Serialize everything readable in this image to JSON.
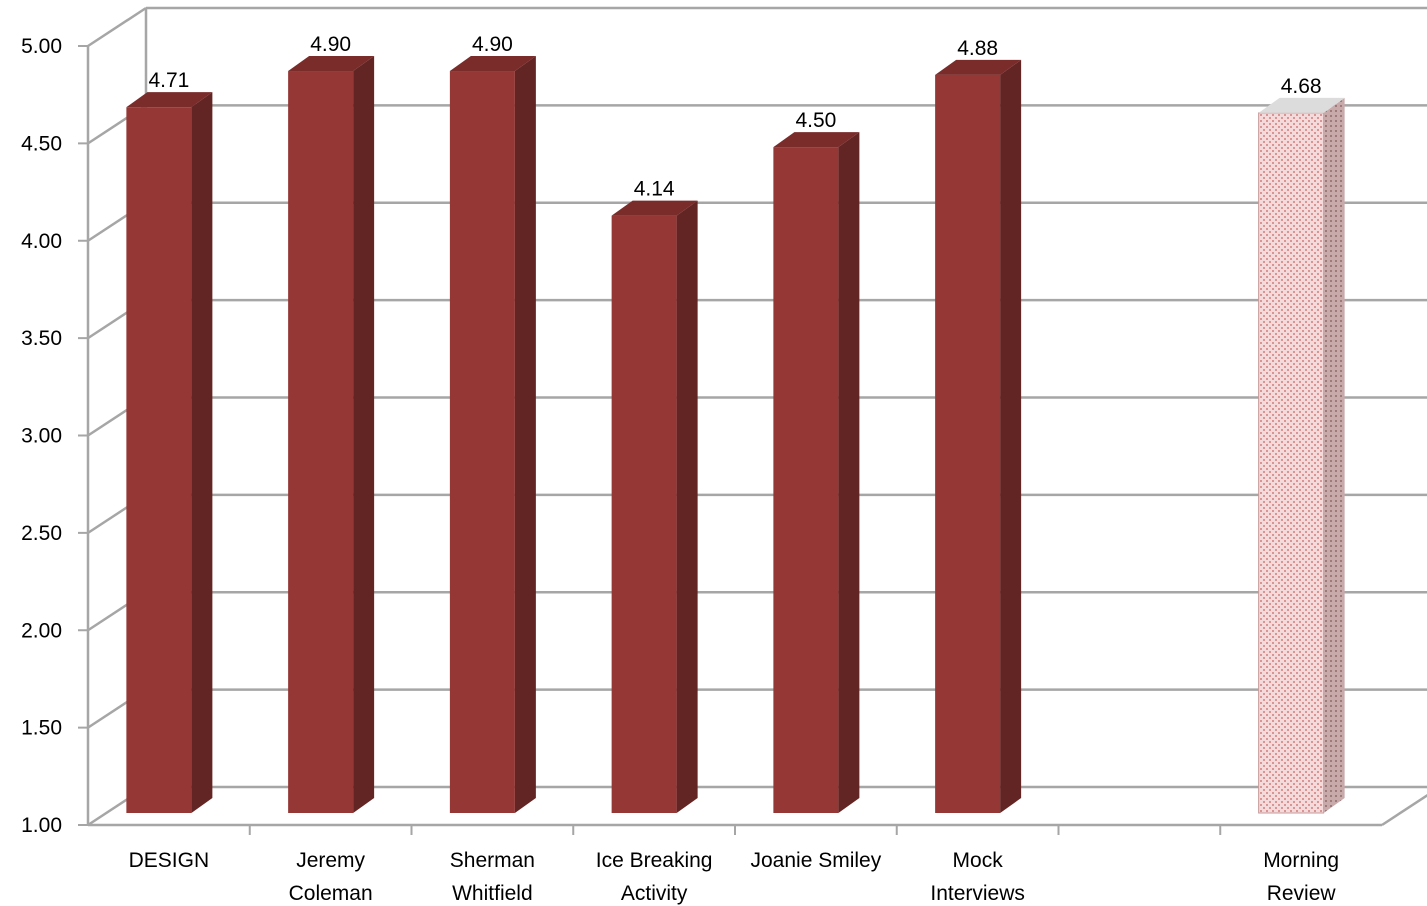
{
  "chart_data": {
    "type": "bar",
    "style": "3d-column",
    "categories": [
      [
        "DESIGN"
      ],
      [
        "Jeremy",
        "Coleman"
      ],
      [
        "Sherman",
        "Whitfield"
      ],
      [
        "Ice Breaking",
        "Activity"
      ],
      [
        "Joanie Smiley"
      ],
      [
        "Mock",
        "Interviews"
      ],
      [
        ""
      ],
      [
        "Morning",
        "Review"
      ]
    ],
    "values": [
      4.71,
      4.9,
      4.9,
      4.14,
      4.5,
      4.88,
      null,
      4.68
    ],
    "data_labels": [
      "4.71",
      "4.90",
      "4.90",
      "4.14",
      "4.50",
      "4.88",
      "",
      "4.68"
    ],
    "highlight_index": 7,
    "ylim": [
      1.0,
      5.0
    ],
    "yticks": [
      1.0,
      1.5,
      2.0,
      2.5,
      3.0,
      3.5,
      4.0,
      4.5,
      5.0
    ],
    "ytick_labels": [
      "1.00",
      "1.50",
      "2.00",
      "2.50",
      "3.00",
      "3.50",
      "4.00",
      "4.50",
      "5.00"
    ],
    "grid": true,
    "legend": "none",
    "colors": {
      "bar_front": "#953735",
      "bar_side": "#632523",
      "bar_top": "#7a2c2a",
      "highlight_front": "#f2d4d4",
      "highlight_pattern": "#d99594",
      "highlight_side": "#b79a9a",
      "highlight_top": "#dcdcdc",
      "grid": "#a6a6a6"
    }
  }
}
